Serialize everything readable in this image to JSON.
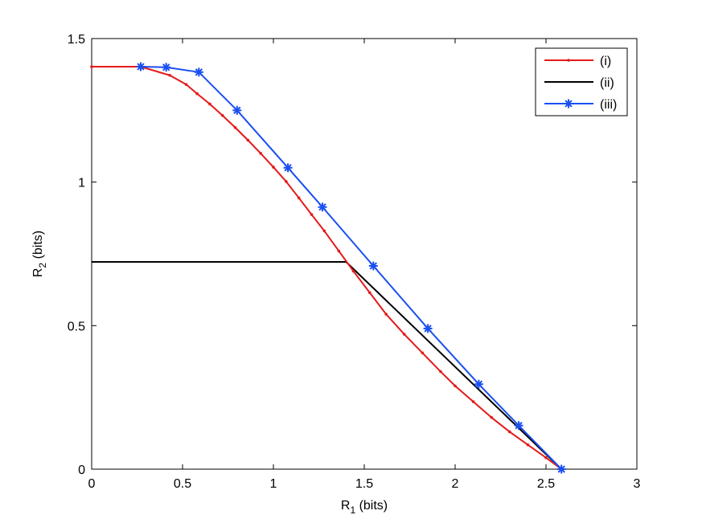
{
  "chart_data": {
    "type": "line",
    "xlabel": {
      "main": "R",
      "sub": "1",
      "rest": " (bits)"
    },
    "ylabel": {
      "main": "R",
      "sub": "2",
      "rest": " (bits)"
    },
    "xlim": [
      0,
      3
    ],
    "ylim": [
      0,
      1.5
    ],
    "x_ticks": [
      0,
      0.5,
      1,
      1.5,
      2,
      2.5,
      3
    ],
    "x_tick_labels": [
      "0",
      "0.5",
      "1",
      "1.5",
      "2",
      "2.5",
      "3"
    ],
    "y_ticks": [
      0,
      0.5,
      1,
      1.5
    ],
    "y_tick_labels": [
      "0",
      "0.5",
      "1",
      "1.5"
    ],
    "grid": false,
    "legend_position": "top-right",
    "series": [
      {
        "name": "(i)",
        "color": "#e41a1a",
        "marker": "dot",
        "x": [
          0,
          0.27,
          0.43,
          0.52,
          0.58,
          0.65,
          0.72,
          0.79,
          0.86,
          0.93,
          1.0,
          1.07,
          1.14,
          1.21,
          1.28,
          1.36,
          1.44,
          1.53,
          1.62,
          1.72,
          1.82,
          1.92,
          2.0,
          2.1,
          2.2,
          2.3,
          2.4,
          2.5,
          2.585
        ],
        "y": [
          1.402,
          1.402,
          1.372,
          1.34,
          1.308,
          1.272,
          1.232,
          1.19,
          1.146,
          1.1,
          1.052,
          1.002,
          0.945,
          0.887,
          0.83,
          0.76,
          0.69,
          0.615,
          0.54,
          0.47,
          0.405,
          0.34,
          0.29,
          0.235,
          0.18,
          0.13,
          0.085,
          0.04,
          0.0
        ]
      },
      {
        "name": "(ii)",
        "color": "#000000",
        "marker": "none",
        "x": [
          0,
          1.4,
          2.585
        ],
        "y": [
          0.722,
          0.722,
          0.0
        ]
      },
      {
        "name": "(iii)",
        "color": "#1a4ff0",
        "marker": "star",
        "x": [
          0.27,
          0.41,
          0.59,
          0.8,
          1.08,
          1.27,
          1.55,
          1.85,
          2.13,
          2.35,
          2.585
        ],
        "y": [
          1.402,
          1.4,
          1.383,
          1.25,
          1.05,
          0.913,
          0.708,
          0.49,
          0.296,
          0.152,
          0.0
        ]
      }
    ]
  }
}
